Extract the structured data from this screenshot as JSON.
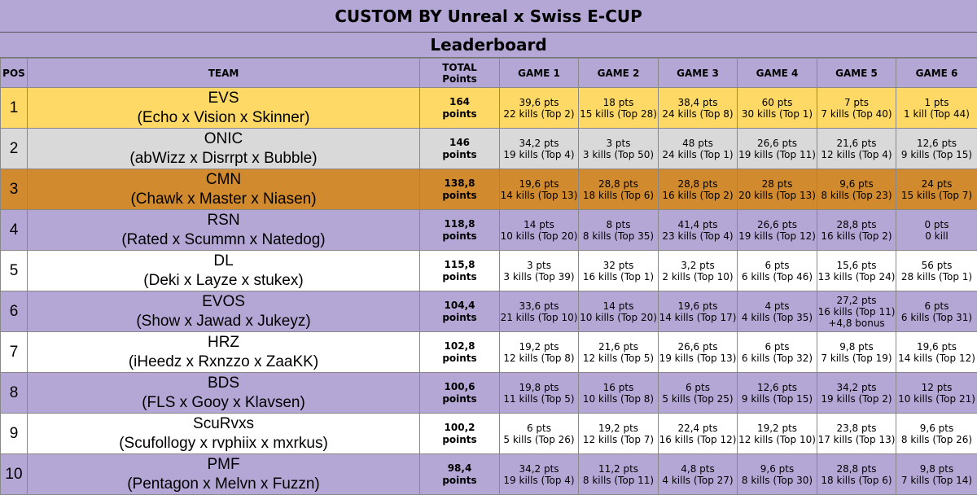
{
  "title": "CUSTOM BY Unreal x Swiss E-CUP",
  "subtitle": "Leaderboard",
  "headers": {
    "pos": "POS",
    "team": "TEAM",
    "total_line1": "TOTAL",
    "total_line2": "Points",
    "game1": "GAME 1",
    "game2": "GAME 2",
    "game3": "GAME 3",
    "game4": "GAME 4",
    "game5": "GAME 5",
    "game6": "GAME 6"
  },
  "colors": {
    "first": "#ffd966",
    "second": "#d9d9d9",
    "third": "#d18a2d",
    "purple": "#b4a7d6",
    "white": "#ffffff"
  },
  "rows": [
    {
      "pos": "1",
      "style": "gold",
      "team": "EVS",
      "players": "(Echo x Vision x Skinner)",
      "total": "164",
      "unit": "points",
      "games": [
        [
          "39,6 pts",
          "22 kills (Top 2)"
        ],
        [
          "18 pts",
          "15 kills (Top 28)"
        ],
        [
          "38,4 pts",
          "24 kills (Top 8)"
        ],
        [
          "60 pts",
          "30 kills (Top 1)"
        ],
        [
          "7 pts",
          "7 kills (Top 40)"
        ],
        [
          "1 pts",
          "1 kill (Top 44)"
        ]
      ]
    },
    {
      "pos": "2",
      "style": "silver",
      "team": "ONIC",
      "players": "(abWizz x Disrrpt x Bubble)",
      "total": "146",
      "unit": "points",
      "games": [
        [
          "34,2 pts",
          "19 kills (Top 4)"
        ],
        [
          "3 pts",
          "3 kills (Top 50)"
        ],
        [
          "48 pts",
          "24 kills (Top 1)"
        ],
        [
          "26,6 pts",
          "19 kills (Top 11)"
        ],
        [
          "21,6 pts",
          "12 kills (Top 4)"
        ],
        [
          "12,6 pts",
          "9 kills (Top 15)"
        ]
      ]
    },
    {
      "pos": "3",
      "style": "bronze",
      "team": "CMN",
      "players": "(Chawk x Master x Niasen)",
      "total": "138,8",
      "unit": "points",
      "games": [
        [
          "19,6 pts",
          "14 kills (Top 13)"
        ],
        [
          "28,8 pts",
          "18 kills (Top 6)"
        ],
        [
          "28,8 pts",
          "16 kills (Top 2)"
        ],
        [
          "28 pts",
          "20 kills (Top 13)"
        ],
        [
          "9,6 pts",
          "8 kills (Top 23)"
        ],
        [
          "24 pts",
          "15 kills (Top 7)"
        ]
      ]
    },
    {
      "pos": "4",
      "style": "purple",
      "team": "RSN",
      "players": "(Rated x Scummn x Natedog)",
      "total": "118,8",
      "unit": "points",
      "games": [
        [
          "14 pts",
          "10 kills (Top 20)"
        ],
        [
          "8 pts",
          "8 kills (Top 35)"
        ],
        [
          "41,4 pts",
          "23 kills (Top 4)"
        ],
        [
          "26,6 pts",
          "19 kills (Top 12)"
        ],
        [
          "28,8 pts",
          "16 kills (Top 2)"
        ],
        [
          "0 pts",
          "0 kill"
        ]
      ]
    },
    {
      "pos": "5",
      "style": "white",
      "team": "DL",
      "players": "(Deki x Layze x stukex)",
      "total": "115,8",
      "unit": "points",
      "games": [
        [
          "3 pts",
          "3 kills (Top 39)"
        ],
        [
          "32 pts",
          "16 kills (Top 1)"
        ],
        [
          "3,2 pts",
          "2 kills (Top 10)"
        ],
        [
          "6 pts",
          "6 kills (Top 46)"
        ],
        [
          "15,6 pts",
          "13 kills (Top 24)"
        ],
        [
          "56 pts",
          "28 kills (Top 1)"
        ]
      ]
    },
    {
      "pos": "6",
      "style": "purple",
      "team": "EVOS",
      "players": "(Show x Jawad x Jukeyz)",
      "total": "104,4",
      "unit": "points",
      "games": [
        [
          "33,6 pts",
          "21 kills (Top 10)"
        ],
        [
          "14 pts",
          "10 kills (Top 20)"
        ],
        [
          "19,6 pts",
          "14 kills (Top 17)"
        ],
        [
          "4 pts",
          "4 kills (Top 35)"
        ],
        [
          "27,2 pts",
          "16 kills (Top 11)",
          "+4,8 bonus"
        ],
        [
          "6 pts",
          "6 kills (Top 31)"
        ]
      ]
    },
    {
      "pos": "7",
      "style": "white",
      "team": "HRZ",
      "players": "(iHeedz x Rxnzzo x ZaaKK)",
      "total": "102,8",
      "unit": "points",
      "games": [
        [
          "19,2 pts",
          "12 kills (Top 8)"
        ],
        [
          "21,6 pts",
          "12 kills (Top 5)"
        ],
        [
          "26,6 pts",
          "19 kills (Top 13)"
        ],
        [
          "6 pts",
          "6 kills (Top 32)"
        ],
        [
          "9,8 pts",
          "7 kills (Top 19)"
        ],
        [
          "19,6 pts",
          "14 kills (Top 12)"
        ]
      ]
    },
    {
      "pos": "8",
      "style": "purple",
      "team": "BDS",
      "players": "(FLS x Gooy x Klavsen)",
      "total": "100,6",
      "unit": "points",
      "games": [
        [
          "19,8 pts",
          "11 kills (Top 5)"
        ],
        [
          "16 pts",
          "10 kills (Top 8)"
        ],
        [
          "6 pts",
          "5 kills (Top 25)"
        ],
        [
          "12,6 pts",
          "9 kills (Top 15)"
        ],
        [
          "34,2 pts",
          "19 kills (Top 2)"
        ],
        [
          "12 pts",
          "10 kills (Top 21)"
        ]
      ]
    },
    {
      "pos": "9",
      "style": "white",
      "team": "ScuRvxs",
      "players": "(Scufollogy x rvphiix x mxrkus)",
      "total": "100,2",
      "unit": "points",
      "games": [
        [
          "6 pts",
          "5 kills (Top 26)"
        ],
        [
          "19,2 pts",
          "12 kills (Top 7)"
        ],
        [
          "22,4 pts",
          "16 kills (Top 12)"
        ],
        [
          "19,2 pts",
          "12 kills (Top 10)"
        ],
        [
          "23,8 pts",
          "17 kills (Top 13)"
        ],
        [
          "9,6 pts",
          "8 kills (Top 26)"
        ]
      ]
    },
    {
      "pos": "10",
      "style": "purple",
      "team": "PMF",
      "players": "(Pentagon x Melvn x Fuzzn)",
      "total": "98,4",
      "unit": "points",
      "games": [
        [
          "34,2 pts",
          "19 kills (Top 4)"
        ],
        [
          "11,2 pts",
          "8 kills (Top 11)"
        ],
        [
          "4,8 pts",
          "4 kills (Top 27)"
        ],
        [
          "9,6 pts",
          "8 kills (Top 30)"
        ],
        [
          "28,8 pts",
          "18 kills (Top 6)"
        ],
        [
          "9,8 pts",
          "7 kills (Top 14)"
        ]
      ]
    }
  ]
}
